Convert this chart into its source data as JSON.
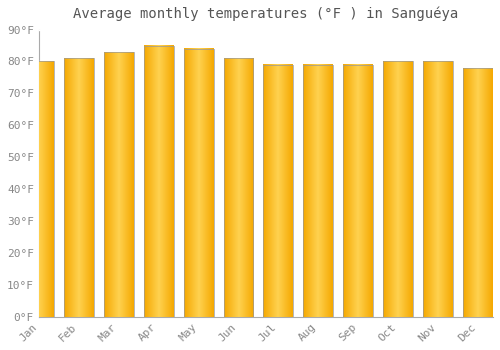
{
  "title": "Average monthly temperatures (°F ) in Sanguéya",
  "months": [
    "Jan",
    "Feb",
    "Mar",
    "Apr",
    "May",
    "Jun",
    "Jul",
    "Aug",
    "Sep",
    "Oct",
    "Nov",
    "Dec"
  ],
  "values": [
    80,
    81,
    83,
    85,
    84,
    81,
    79,
    79,
    79,
    80,
    80,
    78
  ],
  "ylim": [
    0,
    90
  ],
  "yticks": [
    0,
    10,
    20,
    30,
    40,
    50,
    60,
    70,
    80,
    90
  ],
  "ytick_labels": [
    "0°F",
    "10°F",
    "20°F",
    "30°F",
    "40°F",
    "50°F",
    "60°F",
    "70°F",
    "80°F",
    "90°F"
  ],
  "background_color": "#ffffff",
  "plot_bg_color": "#ffffff",
  "grid_color": "#e0e0e0",
  "bar_left_color": "#F5A800",
  "bar_mid_color": "#FFD966",
  "bar_right_color": "#F5A800",
  "bar_edge_color": "#999999",
  "title_fontsize": 10,
  "tick_fontsize": 8,
  "bar_width": 0.75,
  "gradient_steps": 100
}
